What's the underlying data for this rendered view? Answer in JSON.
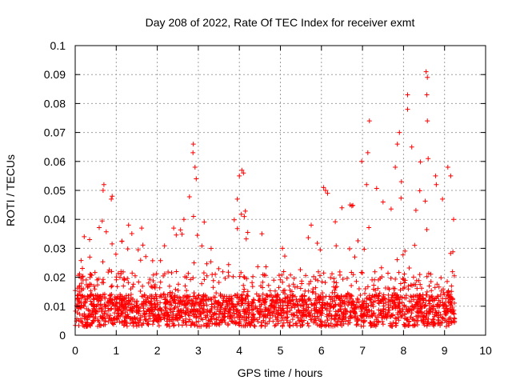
{
  "chart_data": {
    "type": "scatter",
    "title": "Day 208 of 2022, Rate Of TEC Index for receiver exmt",
    "xlabel": "GPS time / hours",
    "ylabel": "ROTI / TECUs",
    "xlim": [
      0,
      10
    ],
    "ylim": [
      0,
      0.1
    ],
    "xticks": [
      0,
      1,
      2,
      3,
      4,
      5,
      6,
      7,
      8,
      9,
      10
    ],
    "xtick_labels": [
      "0",
      "1",
      "2",
      "3",
      "4",
      "5",
      "6",
      "7",
      "8",
      "9",
      "10"
    ],
    "yticks": [
      0,
      0.01,
      0.02,
      0.03,
      0.04,
      0.05,
      0.06,
      0.07,
      0.08,
      0.09,
      0.1
    ],
    "ytick_labels": [
      "0",
      "0.01",
      "0.02",
      "0.03",
      "0.04",
      "0.05",
      "0.06",
      "0.07",
      "0.08",
      "0.09",
      "0.1"
    ],
    "grid": true,
    "marker": "+",
    "series": [
      {
        "name": "ROTI",
        "color": "#ff0000",
        "x_range": [
          0,
          9.25
        ],
        "envelope": [
          [
            0.0,
            0.019
          ],
          [
            0.25,
            0.033
          ],
          [
            0.5,
            0.033
          ],
          [
            0.68,
            0.052
          ],
          [
            0.85,
            0.047
          ],
          [
            1.0,
            0.03
          ],
          [
            1.3,
            0.038
          ],
          [
            1.6,
            0.037
          ],
          [
            2.0,
            0.03
          ],
          [
            2.4,
            0.037
          ],
          [
            2.7,
            0.045
          ],
          [
            2.88,
            0.066
          ],
          [
            3.0,
            0.056
          ],
          [
            3.2,
            0.038
          ],
          [
            3.5,
            0.025
          ],
          [
            3.9,
            0.045
          ],
          [
            4.05,
            0.057
          ],
          [
            4.25,
            0.035
          ],
          [
            4.6,
            0.025
          ],
          [
            5.0,
            0.03
          ],
          [
            5.5,
            0.03
          ],
          [
            5.8,
            0.038
          ],
          [
            6.1,
            0.051
          ],
          [
            6.4,
            0.042
          ],
          [
            6.7,
            0.045
          ],
          [
            6.95,
            0.06
          ],
          [
            7.15,
            0.074
          ],
          [
            7.4,
            0.045
          ],
          [
            7.8,
            0.062
          ],
          [
            8.1,
            0.083
          ],
          [
            8.3,
            0.062
          ],
          [
            8.55,
            0.091
          ],
          [
            8.75,
            0.055
          ],
          [
            9.0,
            0.06
          ],
          [
            9.25,
            0.04
          ]
        ],
        "baseline_typical": 0.009,
        "sample_points": [
          [
            0.7,
            0.052
          ],
          [
            0.68,
            0.05
          ],
          [
            0.88,
            0.047
          ],
          [
            0.9,
            0.048
          ],
          [
            2.88,
            0.066
          ],
          [
            2.87,
            0.063
          ],
          [
            2.92,
            0.058
          ],
          [
            2.95,
            0.054
          ],
          [
            4.0,
            0.055
          ],
          [
            4.06,
            0.057
          ],
          [
            4.1,
            0.056
          ],
          [
            4.12,
            0.041
          ],
          [
            3.95,
            0.047
          ],
          [
            6.05,
            0.051
          ],
          [
            6.1,
            0.05
          ],
          [
            6.98,
            0.06
          ],
          [
            7.17,
            0.074
          ],
          [
            7.13,
            0.063
          ],
          [
            7.1,
            0.052
          ],
          [
            7.85,
            0.066
          ],
          [
            7.9,
            0.07
          ],
          [
            8.1,
            0.083
          ],
          [
            8.1,
            0.078
          ],
          [
            8.2,
            0.065
          ],
          [
            8.55,
            0.091
          ],
          [
            8.58,
            0.089
          ],
          [
            8.57,
            0.083
          ],
          [
            8.58,
            0.074
          ],
          [
            8.6,
            0.061
          ],
          [
            8.78,
            0.055
          ],
          [
            8.8,
            0.052
          ],
          [
            9.08,
            0.058
          ],
          [
            9.15,
            0.055
          ],
          [
            9.22,
            0.04
          ],
          [
            8.95,
            0.047
          ],
          [
            7.95,
            0.053
          ],
          [
            7.8,
            0.058
          ],
          [
            6.15,
            0.049
          ],
          [
            2.65,
            0.04
          ],
          [
            2.4,
            0.037
          ],
          [
            1.62,
            0.037
          ],
          [
            1.3,
            0.038
          ],
          [
            0.22,
            0.034
          ],
          [
            0.35,
            0.033
          ],
          [
            4.55,
            0.035
          ],
          [
            5.05,
            0.03
          ],
          [
            5.75,
            0.038
          ],
          [
            6.5,
            0.044
          ],
          [
            6.7,
            0.045
          ],
          [
            7.5,
            0.046
          ]
        ]
      }
    ]
  }
}
